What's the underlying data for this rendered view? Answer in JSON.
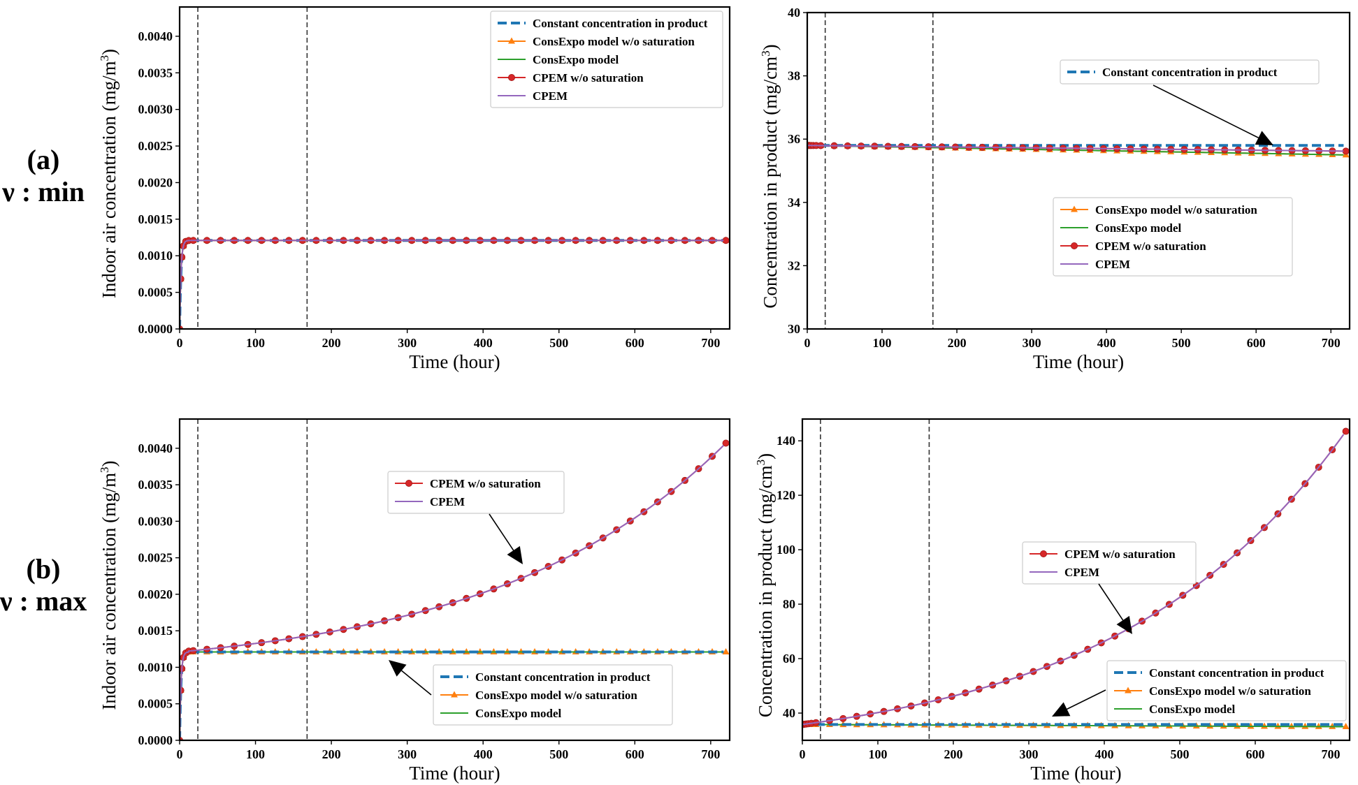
{
  "row_labels": [
    {
      "tag": "(a)",
      "param": "ν : min"
    },
    {
      "tag": "(b)",
      "param": "ν : max"
    }
  ],
  "colors": {
    "constant": "#1f77b4",
    "consexpo_wo": "#ff7f0e",
    "consexpo": "#2ca02c",
    "cpem_wo": "#d62728",
    "cpem": "#9467bd",
    "vline": "#333333"
  },
  "chart_data": [
    {
      "id": "a-air",
      "type": "line",
      "row": "(a)",
      "xlabel": "Time (hour)",
      "ylabel": "Indoor air concentration (mg/m",
      "ylabel_sup": "3",
      "ylabel_close": ")",
      "xlim": [
        0,
        725
      ],
      "ylim": [
        0,
        0.0044
      ],
      "xticks": [
        0,
        100,
        200,
        300,
        400,
        500,
        600,
        700
      ],
      "yticks": [
        "0.0000",
        "0.0005",
        "0.0010",
        "0.0015",
        "0.0020",
        "0.0025",
        "0.0030",
        "0.0035",
        "0.0040"
      ],
      "vlines": [
        24,
        168
      ],
      "legend": [
        {
          "key": "constant",
          "label": "Constant concentration in product",
          "style": "dash"
        },
        {
          "key": "consexpo_wo",
          "label": "ConsExpo model w/o saturation",
          "style": "tri"
        },
        {
          "key": "consexpo",
          "label": "ConsExpo model",
          "style": "line"
        },
        {
          "key": "cpem_wo",
          "label": "CPEM w/o saturation",
          "style": "circ"
        },
        {
          "key": "cpem",
          "label": "CPEM",
          "style": "line"
        }
      ],
      "callouts": [],
      "series": [
        {
          "key": "constant",
          "name": "Constant concentration in product",
          "style": "dash",
          "model": "air_sat",
          "param": 1.0
        },
        {
          "key": "consexpo_wo",
          "name": "ConsExpo model w/o saturation",
          "style": "tri",
          "model": "air_sat",
          "param": 1.0
        },
        {
          "key": "consexpo",
          "name": "ConsExpo model",
          "style": "line",
          "model": "air_sat",
          "param": 1.0
        },
        {
          "key": "cpem_wo",
          "name": "CPEM w/o saturation",
          "style": "circ",
          "model": "air_sat",
          "param": 1.0
        },
        {
          "key": "cpem",
          "name": "CPEM",
          "style": "line",
          "model": "air_sat",
          "param": 1.0
        }
      ],
      "plateau": 0.00121
    },
    {
      "id": "a-prod",
      "type": "line",
      "row": "(a)",
      "xlabel": "Time (hour)",
      "ylabel": "Concentration in product (mg/cm",
      "ylabel_sup": "3",
      "ylabel_close": ")",
      "xlim": [
        0,
        725
      ],
      "ylim": [
        30,
        40
      ],
      "xticks": [
        0,
        100,
        200,
        300,
        400,
        500,
        600,
        700
      ],
      "yticks": [
        "30",
        "32",
        "34",
        "36",
        "38",
        "40"
      ],
      "vlines": [
        24,
        168
      ],
      "legend_a": [
        {
          "key": "constant",
          "label": "Constant concentration in product",
          "style": "dash"
        }
      ],
      "legend_b": [
        {
          "key": "consexpo_wo",
          "label": "ConsExpo model w/o saturation",
          "style": "tri"
        },
        {
          "key": "consexpo",
          "label": "ConsExpo model",
          "style": "line"
        },
        {
          "key": "cpem_wo",
          "label": "CPEM w/o saturation",
          "style": "circ"
        },
        {
          "key": "cpem",
          "label": "CPEM",
          "style": "line"
        }
      ],
      "series": [
        {
          "key": "constant",
          "name": "Constant concentration in product",
          "style": "dash",
          "start": 35.8,
          "end": 35.8
        },
        {
          "key": "consexpo_wo",
          "name": "ConsExpo model w/o saturation",
          "style": "tri",
          "start": 35.8,
          "end": 35.5
        },
        {
          "key": "consexpo",
          "name": "ConsExpo model",
          "style": "line",
          "start": 35.8,
          "end": 35.5
        },
        {
          "key": "cpem_wo",
          "name": "CPEM w/o saturation",
          "style": "circ",
          "start": 35.8,
          "end": 35.62
        },
        {
          "key": "cpem",
          "name": "CPEM",
          "style": "line",
          "start": 35.8,
          "end": 35.62
        }
      ]
    },
    {
      "id": "b-air",
      "type": "line",
      "row": "(b)",
      "xlabel": "Time (hour)",
      "ylabel": "Indoor air concentration (mg/m",
      "ylabel_sup": "3",
      "ylabel_close": ")",
      "xlim": [
        0,
        725
      ],
      "ylim": [
        0,
        0.0044
      ],
      "xticks": [
        0,
        100,
        200,
        300,
        400,
        500,
        600,
        700
      ],
      "yticks": [
        "0.0000",
        "0.0005",
        "0.0010",
        "0.0015",
        "0.0020",
        "0.0025",
        "0.0030",
        "0.0035",
        "0.0040"
      ],
      "vlines": [
        24,
        168
      ],
      "legend_a": [
        {
          "key": "cpem_wo",
          "label": "CPEM w/o saturation",
          "style": "circ"
        },
        {
          "key": "cpem",
          "label": "CPEM",
          "style": "line"
        }
      ],
      "legend_b": [
        {
          "key": "constant",
          "label": "Constant concentration in product",
          "style": "dash"
        },
        {
          "key": "consexpo_wo",
          "label": "ConsExpo model w/o saturation",
          "style": "tri"
        },
        {
          "key": "consexpo",
          "label": "ConsExpo model",
          "style": "line"
        }
      ],
      "plateau": 0.00121,
      "growth_from": 0.00121,
      "growth_to": 0.00407,
      "series": [
        {
          "key": "constant",
          "name": "Constant concentration in product",
          "style": "dash"
        },
        {
          "key": "consexpo_wo",
          "name": "ConsExpo model w/o saturation",
          "style": "tri"
        },
        {
          "key": "consexpo",
          "name": "ConsExpo model",
          "style": "line"
        },
        {
          "key": "cpem_wo",
          "name": "CPEM w/o saturation",
          "style": "circ"
        },
        {
          "key": "cpem",
          "name": "CPEM",
          "style": "line"
        }
      ]
    },
    {
      "id": "b-prod",
      "type": "line",
      "row": "(b)",
      "xlabel": "Time (hour)",
      "ylabel": "Concentration in product (mg/cm",
      "ylabel_sup": "3",
      "ylabel_close": ")",
      "xlim": [
        0,
        725
      ],
      "ylim": [
        30,
        148
      ],
      "xticks": [
        0,
        100,
        200,
        300,
        400,
        500,
        600,
        700
      ],
      "yticks": [
        "40",
        "60",
        "80",
        "100",
        "120",
        "140"
      ],
      "ytick_values": [
        40,
        60,
        80,
        100,
        120,
        140
      ],
      "vlines": [
        24,
        168
      ],
      "legend_a": [
        {
          "key": "cpem_wo",
          "label": "CPEM w/o saturation",
          "style": "circ"
        },
        {
          "key": "cpem",
          "label": "CPEM",
          "style": "line"
        }
      ],
      "legend_b": [
        {
          "key": "constant",
          "label": "Constant concentration in product",
          "style": "dash"
        },
        {
          "key": "consexpo_wo",
          "label": "ConsExpo model w/o saturation",
          "style": "tri"
        },
        {
          "key": "consexpo",
          "label": "ConsExpo model",
          "style": "line"
        }
      ],
      "flat_value": 35.8,
      "growth_from": 35.8,
      "growth_to": 143.5,
      "series": [
        {
          "key": "constant",
          "name": "Constant concentration in product",
          "style": "dash"
        },
        {
          "key": "consexpo_wo",
          "name": "ConsExpo model w/o saturation",
          "style": "tri"
        },
        {
          "key": "consexpo",
          "name": "ConsExpo model",
          "style": "line"
        },
        {
          "key": "cpem_wo",
          "name": "CPEM w/o saturation",
          "style": "circ"
        },
        {
          "key": "cpem",
          "name": "CPEM",
          "style": "line"
        }
      ]
    }
  ]
}
